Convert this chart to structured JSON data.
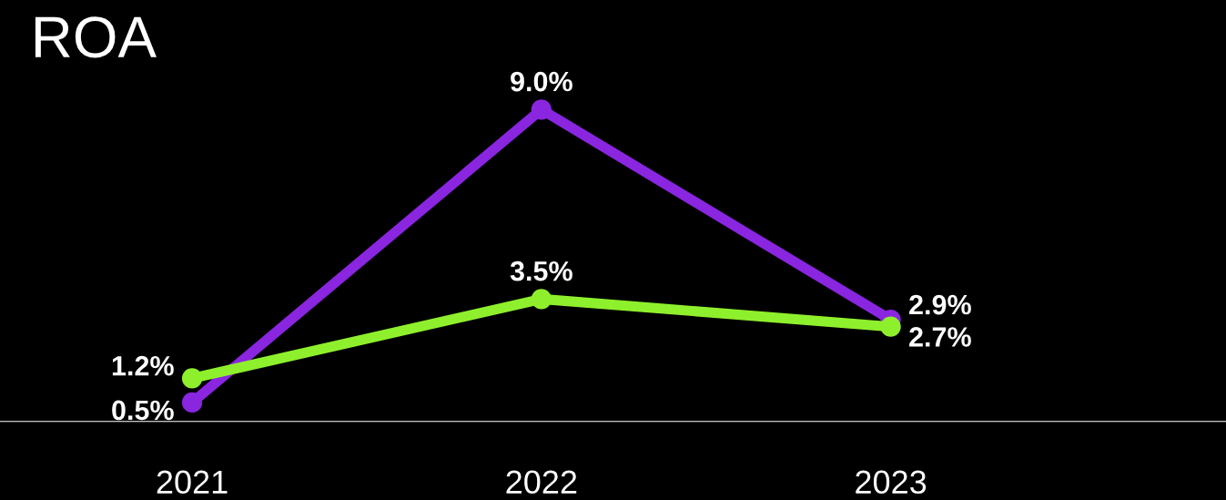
{
  "chart_data": {
    "type": "line",
    "title": "ROA",
    "categories": [
      "2021",
      "2022",
      "2023"
    ],
    "series": [
      {
        "color": "#8a25e0",
        "values": [
          0.5,
          9.0,
          2.9
        ],
        "value_labels": [
          "0.5%",
          "9.0%",
          "2.9%"
        ]
      },
      {
        "color": "#8ef02c",
        "values": [
          1.2,
          3.5,
          2.7
        ],
        "value_labels": [
          "1.2%",
          "3.5%",
          "2.7%"
        ]
      }
    ],
    "marker": "circle",
    "line_style": "solid",
    "grid": false,
    "legend": false,
    "tick_labels": "x"
  }
}
